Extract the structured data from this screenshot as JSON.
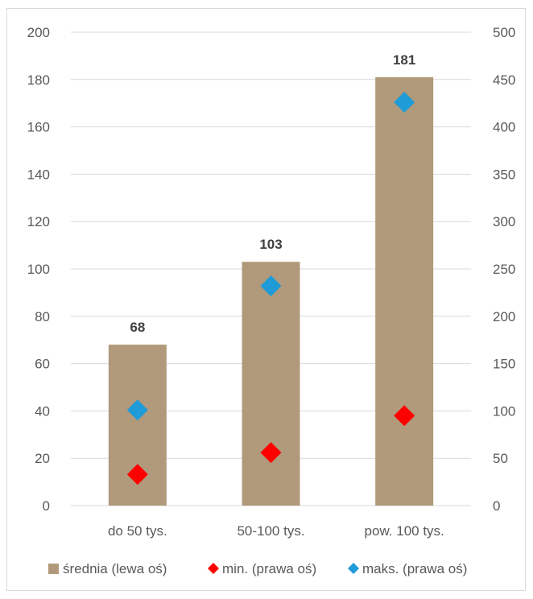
{
  "chart_data": {
    "type": "bar",
    "categories": [
      "do 50 tys.",
      "50-100 tys.",
      "pow. 100 tys."
    ],
    "series": [
      {
        "name": "średnia (lewa oś)",
        "kind": "bar",
        "axis": "left",
        "color": "#b09a7b",
        "values": [
          68,
          103,
          181
        ],
        "data_labels": [
          "68",
          "103",
          "181"
        ]
      },
      {
        "name": "min. (prawa oś)",
        "kind": "scatter",
        "marker": "diamond",
        "axis": "right",
        "color": "#ff0000",
        "values": [
          33,
          56,
          95
        ]
      },
      {
        "name": "maks. (prawa oś)",
        "kind": "scatter",
        "marker": "diamond",
        "axis": "right",
        "color": "#1f9bd7",
        "values": [
          101,
          232,
          426
        ]
      }
    ],
    "left_axis": {
      "min": 0,
      "max": 200,
      "ticks": [
        "0",
        "20",
        "40",
        "60",
        "80",
        "100",
        "120",
        "140",
        "160",
        "180",
        "200"
      ]
    },
    "right_axis": {
      "min": 0,
      "max": 500,
      "ticks": [
        "0",
        "50",
        "100",
        "150",
        "200",
        "250",
        "300",
        "350",
        "400",
        "450",
        "500"
      ]
    },
    "title": "",
    "xlabel": "",
    "ylabel": "",
    "grid": true,
    "legend_position": "bottom",
    "gridline_color": "#d9d9d9"
  }
}
